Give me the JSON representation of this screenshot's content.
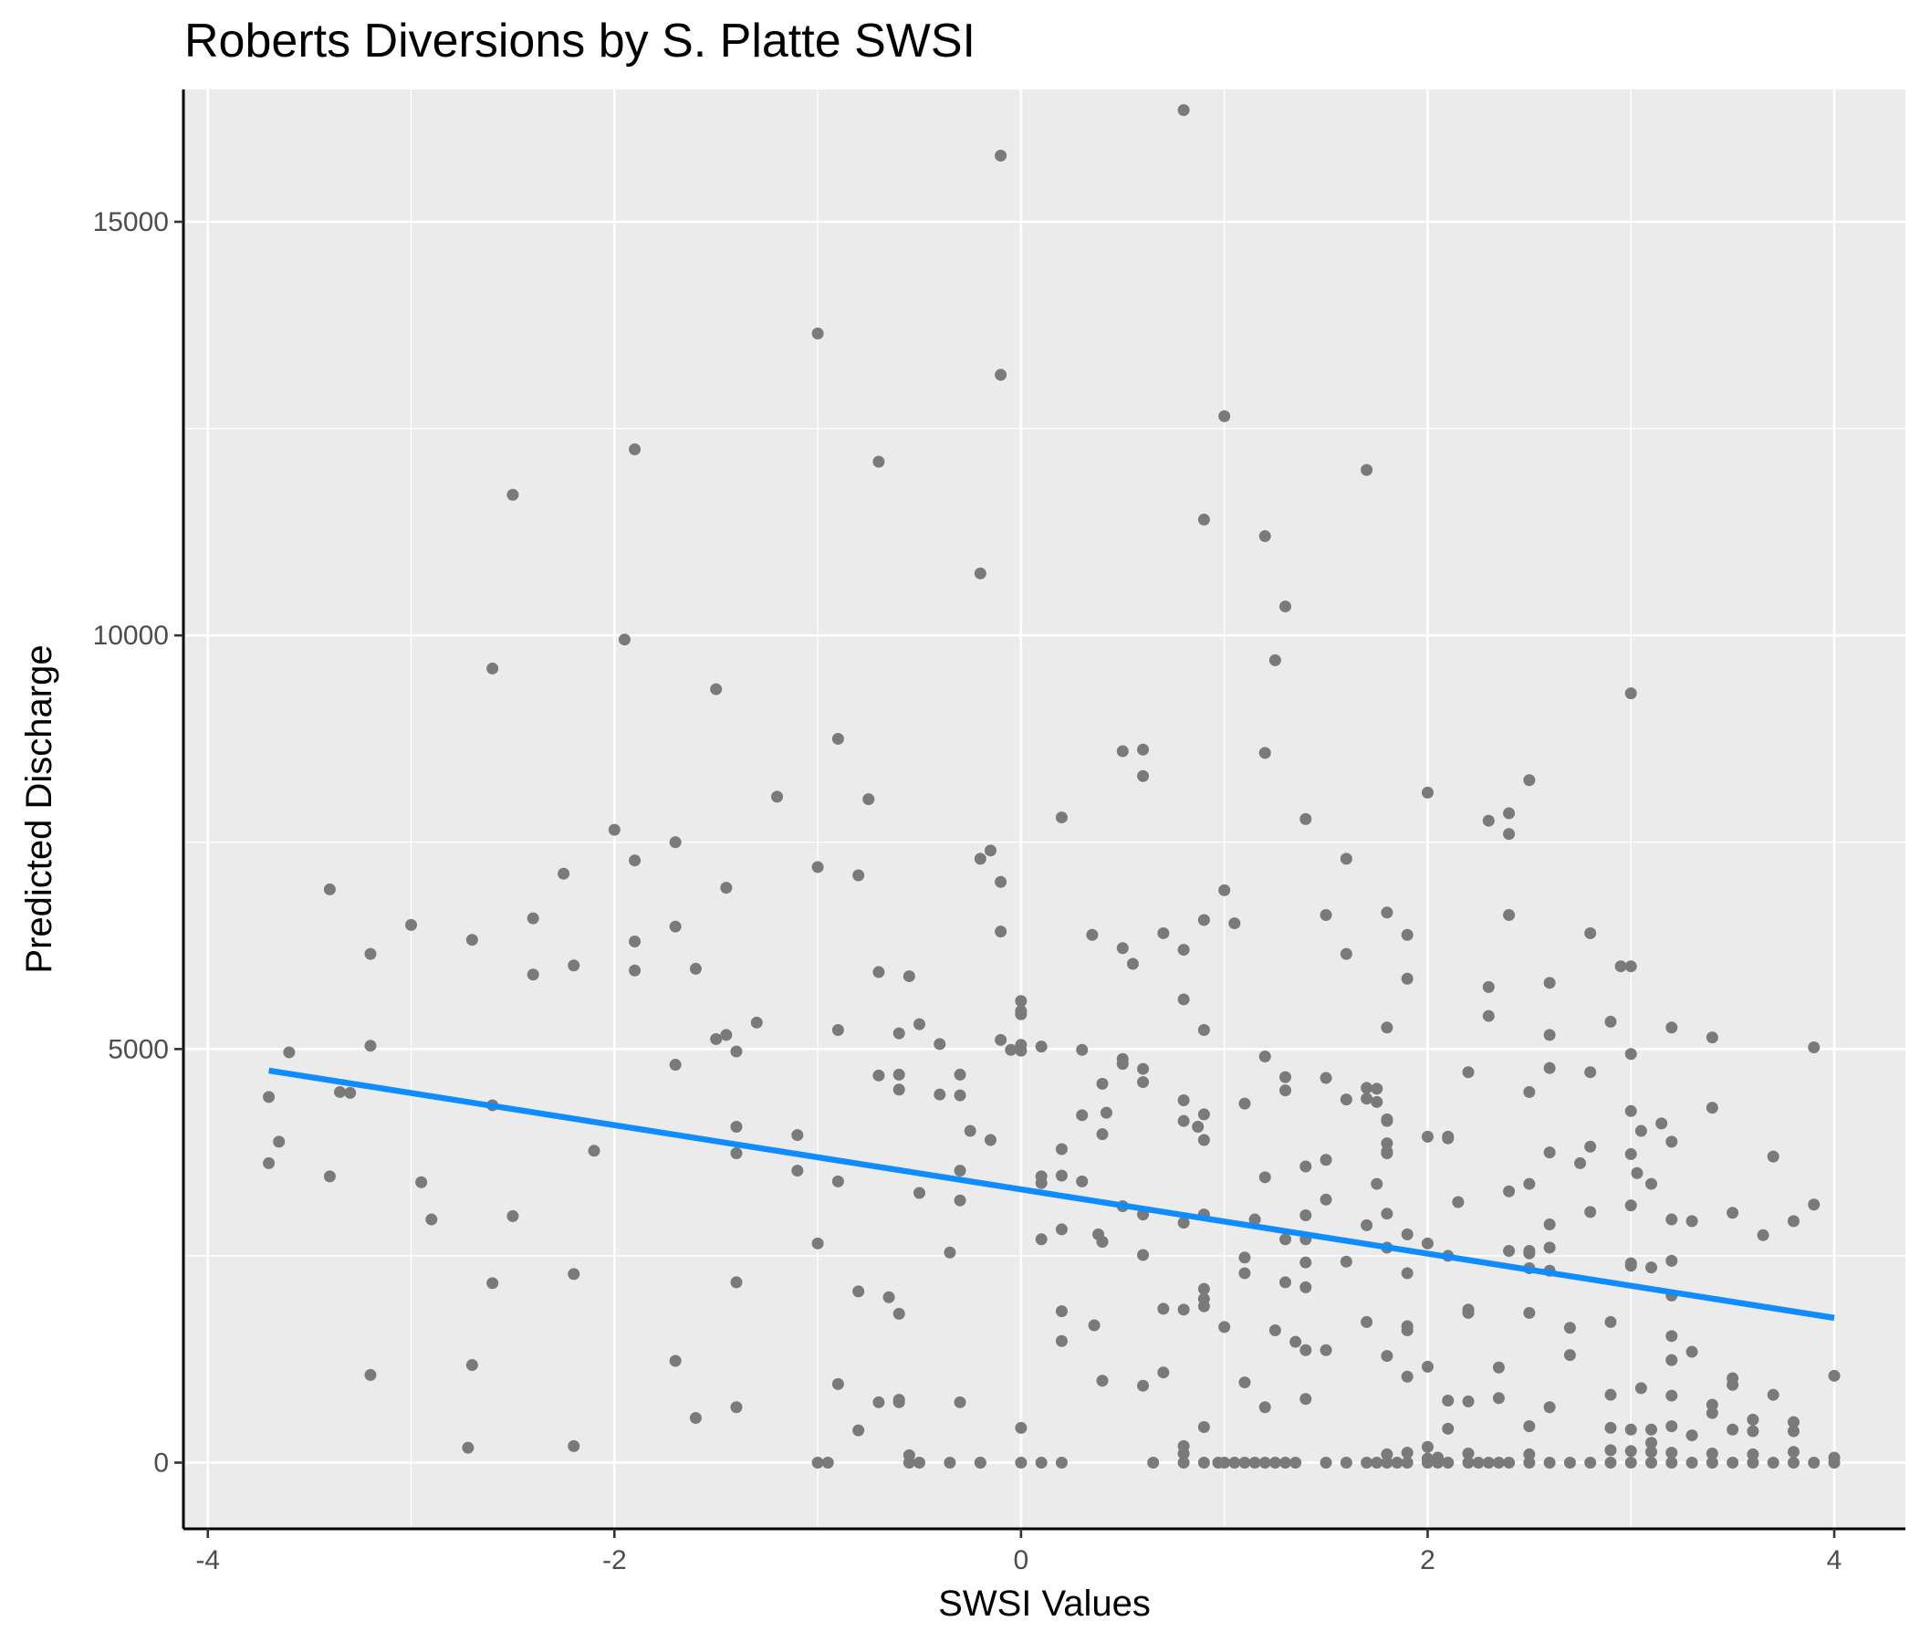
{
  "chart_data": {
    "type": "scatter",
    "title": "Roberts Diversions by S. Platte SWSI",
    "xlabel": "SWSI Values",
    "ylabel": "Predicted Discharge",
    "xlim": [
      -4.12,
      4.35
    ],
    "ylim": [
      -800,
      16600
    ],
    "x_ticks": [
      -4,
      -2,
      0,
      2,
      4
    ],
    "x_tick_labels": [
      "-4",
      "-2",
      "0",
      "2",
      "4"
    ],
    "y_ticks": [
      0,
      5000,
      10000,
      15000
    ],
    "y_tick_labels": [
      "0",
      "5000",
      "10000",
      "15000"
    ],
    "grid": true,
    "background": "#ebebeb",
    "grid_color": "#ffffff",
    "point_color": "#7a7a7a",
    "trend_color": "#0f8cff",
    "trend_line": {
      "x": [
        -3.7,
        4.0
      ],
      "y": [
        4740,
        1750
      ]
    },
    "points": [
      [
        0.8,
        16350
      ],
      [
        -0.1,
        15800
      ],
      [
        -1.0,
        13650
      ],
      [
        -0.1,
        13150
      ],
      [
        1.0,
        12650
      ],
      [
        -1.9,
        12250
      ],
      [
        -0.7,
        12100
      ],
      [
        1.7,
        12000
      ],
      [
        -2.5,
        11700
      ],
      [
        0.9,
        11400
      ],
      [
        1.2,
        11200
      ],
      [
        -0.2,
        10750
      ],
      [
        1.3,
        10350
      ],
      [
        -1.95,
        9950
      ],
      [
        1.25,
        9700
      ],
      [
        -2.6,
        9600
      ],
      [
        -1.5,
        9350
      ],
      [
        3.0,
        9300
      ],
      [
        -0.9,
        8750
      ],
      [
        0.5,
        8600
      ],
      [
        0.6,
        8620
      ],
      [
        1.2,
        8580
      ],
      [
        0.6,
        8300
      ],
      [
        2.5,
        8250
      ],
      [
        2.0,
        8100
      ],
      [
        -1.2,
        8050
      ],
      [
        -0.75,
        8020
      ],
      [
        2.4,
        7850
      ],
      [
        0.2,
        7800
      ],
      [
        1.4,
        7780
      ],
      [
        2.3,
        7760
      ],
      [
        -2.0,
        7650
      ],
      [
        2.4,
        7600
      ],
      [
        -1.7,
        7500
      ],
      [
        -0.15,
        7400
      ],
      [
        -0.2,
        7300
      ],
      [
        -1.9,
        7280
      ],
      [
        1.6,
        7300
      ],
      [
        -2.25,
        7120
      ],
      [
        -1.0,
        7200
      ],
      [
        -0.8,
        7100
      ],
      [
        -0.1,
        7020
      ],
      [
        -3.4,
        6930
      ],
      [
        -1.45,
        6950
      ],
      [
        1.0,
        6920
      ],
      [
        1.8,
        6650
      ],
      [
        1.5,
        6620
      ],
      [
        2.4,
        6620
      ],
      [
        -2.4,
        6580
      ],
      [
        0.9,
        6560
      ],
      [
        1.05,
        6520
      ],
      [
        -3.0,
        6500
      ],
      [
        -1.7,
        6480
      ],
      [
        -0.1,
        6420
      ],
      [
        0.7,
        6400
      ],
      [
        0.35,
        6380
      ],
      [
        1.9,
        6380
      ],
      [
        2.8,
        6400
      ],
      [
        -2.7,
        6320
      ],
      [
        -1.9,
        6300
      ],
      [
        0.5,
        6220
      ],
      [
        0.8,
        6200
      ],
      [
        1.6,
        6150
      ],
      [
        -3.2,
        6150
      ],
      [
        0.55,
        6030
      ],
      [
        -2.2,
        6010
      ],
      [
        -1.6,
        5970
      ],
      [
        -1.9,
        5950
      ],
      [
        -0.7,
        5930
      ],
      [
        -2.4,
        5900
      ],
      [
        -0.55,
        5880
      ],
      [
        1.9,
        5850
      ],
      [
        2.6,
        5800
      ],
      [
        2.3,
        5750
      ],
      [
        2.95,
        6000
      ],
      [
        3.0,
        6000
      ],
      [
        0.8,
        5600
      ],
      [
        0.0,
        5580
      ],
      [
        0.0,
        5460
      ],
      [
        0.0,
        5420
      ],
      [
        2.3,
        5400
      ],
      [
        2.9,
        5330
      ],
      [
        -1.3,
        5320
      ],
      [
        -0.5,
        5300
      ],
      [
        1.8,
        5260
      ],
      [
        3.2,
        5260
      ],
      [
        -0.9,
        5230
      ],
      [
        0.9,
        5230
      ],
      [
        -0.6,
        5190
      ],
      [
        2.6,
        5170
      ],
      [
        -1.45,
        5170
      ],
      [
        -1.5,
        5120
      ],
      [
        3.4,
        5140
      ],
      [
        -0.1,
        5110
      ],
      [
        -0.4,
        5060
      ],
      [
        -3.2,
        5040
      ],
      [
        0.1,
        5030
      ],
      [
        3.9,
        5020
      ],
      [
        -0.05,
        4990
      ],
      [
        0.0,
        4980
      ],
      [
        0.0,
        5050
      ],
      [
        0.3,
        4990
      ],
      [
        -1.4,
        4970
      ],
      [
        -3.6,
        4960
      ],
      [
        3.0,
        4940
      ],
      [
        1.2,
        4910
      ],
      [
        0.5,
        4880
      ],
      [
        0.5,
        4820
      ],
      [
        -1.7,
        4810
      ],
      [
        2.6,
        4770
      ],
      [
        0.6,
        4760
      ],
      [
        2.2,
        4720
      ],
      [
        2.8,
        4720
      ],
      [
        -0.7,
        4680
      ],
      [
        -0.6,
        4690
      ],
      [
        1.3,
        4660
      ],
      [
        1.5,
        4650
      ],
      [
        -0.3,
        4690
      ],
      [
        0.4,
        4580
      ],
      [
        0.6,
        4600
      ],
      [
        1.7,
        4530
      ],
      [
        1.75,
        4520
      ],
      [
        1.3,
        4500
      ],
      [
        -0.6,
        4510
      ],
      [
        2.5,
        4480
      ],
      [
        -3.35,
        4480
      ],
      [
        -3.3,
        4470
      ],
      [
        -0.4,
        4450
      ],
      [
        -0.3,
        4440
      ],
      [
        -3.7,
        4420
      ],
      [
        1.6,
        4390
      ],
      [
        1.7,
        4400
      ],
      [
        1.75,
        4360
      ],
      [
        0.8,
        4380
      ],
      [
        1.1,
        4340
      ],
      [
        -2.6,
        4320
      ],
      [
        3.4,
        4290
      ],
      [
        3.0,
        4250
      ],
      [
        0.42,
        4230
      ],
      [
        0.3,
        4200
      ],
      [
        0.9,
        4210
      ],
      [
        1.8,
        4150
      ],
      [
        1.8,
        4130
      ],
      [
        0.8,
        4130
      ],
      [
        3.15,
        4100
      ],
      [
        -1.4,
        4060
      ],
      [
        0.87,
        4060
      ],
      [
        -0.25,
        4010
      ],
      [
        3.05,
        4010
      ],
      [
        0.4,
        3970
      ],
      [
        -1.1,
        3960
      ],
      [
        2.0,
        3940
      ],
      [
        2.1,
        3940
      ],
      [
        2.1,
        3920
      ],
      [
        -0.15,
        3900
      ],
      [
        0.9,
        3900
      ],
      [
        3.2,
        3880
      ],
      [
        -3.65,
        3880
      ],
      [
        1.8,
        3860
      ],
      [
        2.8,
        3820
      ],
      [
        0.2,
        3790
      ],
      [
        -2.1,
        3770
      ],
      [
        1.8,
        3760
      ],
      [
        1.8,
        3740
      ],
      [
        2.6,
        3750
      ],
      [
        -1.4,
        3740
      ],
      [
        3.0,
        3730
      ],
      [
        3.7,
        3700
      ],
      [
        1.5,
        3660
      ],
      [
        2.75,
        3620
      ],
      [
        -3.7,
        3620
      ],
      [
        1.4,
        3580
      ],
      [
        -1.1,
        3530
      ],
      [
        -0.3,
        3530
      ],
      [
        3.03,
        3500
      ],
      [
        0.1,
        3460
      ],
      [
        0.2,
        3470
      ],
      [
        1.2,
        3450
      ],
      [
        -3.4,
        3460
      ],
      [
        0.1,
        3380
      ],
      [
        -0.9,
        3400
      ],
      [
        -2.95,
        3390
      ],
      [
        0.3,
        3400
      ],
      [
        3.1,
        3370
      ],
      [
        1.75,
        3370
      ],
      [
        2.5,
        3370
      ],
      [
        2.4,
        3280
      ],
      [
        -0.5,
        3260
      ],
      [
        1.5,
        3180
      ],
      [
        -0.3,
        3170
      ],
      [
        2.15,
        3150
      ],
      [
        3.9,
        3120
      ],
      [
        3.0,
        3110
      ],
      [
        0.5,
        3100
      ],
      [
        2.8,
        3030
      ],
      [
        1.8,
        3010
      ],
      [
        0.6,
        3000
      ],
      [
        3.5,
        3020
      ],
      [
        0.9,
        3000
      ],
      [
        1.4,
        2990
      ],
      [
        -2.5,
        2980
      ],
      [
        -2.9,
        2940
      ],
      [
        1.15,
        2940
      ],
      [
        3.2,
        2940
      ],
      [
        3.3,
        2920
      ],
      [
        3.8,
        2920
      ],
      [
        0.8,
        2900
      ],
      [
        2.6,
        2880
      ],
      [
        1.7,
        2870
      ],
      [
        0.2,
        2820
      ],
      [
        3.65,
        2750
      ],
      [
        0.38,
        2760
      ],
      [
        1.9,
        2760
      ],
      [
        1.3,
        2700
      ],
      [
        1.4,
        2700
      ],
      [
        0.1,
        2700
      ],
      [
        0.4,
        2670
      ],
      [
        -1.0,
        2650
      ],
      [
        2.0,
        2650
      ],
      [
        1.8,
        2600
      ],
      [
        2.6,
        2600
      ],
      [
        2.4,
        2560
      ],
      [
        2.5,
        2560
      ],
      [
        2.5,
        2530
      ],
      [
        -0.35,
        2540
      ],
      [
        0.6,
        2510
      ],
      [
        2.1,
        2500
      ],
      [
        1.1,
        2480
      ],
      [
        3.2,
        2440
      ],
      [
        1.6,
        2430
      ],
      [
        1.4,
        2420
      ],
      [
        3.0,
        2410
      ],
      [
        3.0,
        2380
      ],
      [
        3.1,
        2360
      ],
      [
        2.5,
        2350
      ],
      [
        2.6,
        2320
      ],
      [
        1.1,
        2290
      ],
      [
        1.9,
        2290
      ],
      [
        -2.2,
        2280
      ],
      [
        1.3,
        2180
      ],
      [
        1.4,
        2120
      ],
      [
        -2.6,
        2170
      ],
      [
        -1.4,
        2180
      ],
      [
        0.9,
        2100
      ],
      [
        -0.8,
        2070
      ],
      [
        3.2,
        2020
      ],
      [
        -0.65,
        2000
      ],
      [
        0.9,
        1980
      ],
      [
        0.9,
        1890
      ],
      [
        0.7,
        1860
      ],
      [
        0.8,
        1850
      ],
      [
        2.2,
        1850
      ],
      [
        0.2,
        1830
      ],
      [
        2.2,
        1810
      ],
      [
        2.5,
        1810
      ],
      [
        -0.6,
        1800
      ],
      [
        1.7,
        1700
      ],
      [
        1.9,
        1650
      ],
      [
        0.36,
        1660
      ],
      [
        2.7,
        1630
      ],
      [
        1.0,
        1640
      ],
      [
        1.25,
        1600
      ],
      [
        2.9,
        1700
      ],
      [
        1.9,
        1600
      ],
      [
        3.2,
        1530
      ],
      [
        0.2,
        1470
      ],
      [
        1.35,
        1460
      ],
      [
        1.4,
        1360
      ],
      [
        1.5,
        1360
      ],
      [
        3.3,
        1340
      ],
      [
        2.7,
        1300
      ],
      [
        1.8,
        1290
      ],
      [
        3.2,
        1240
      ],
      [
        -1.7,
        1230
      ],
      [
        -2.7,
        1180
      ],
      [
        2.0,
        1160
      ],
      [
        2.35,
        1150
      ],
      [
        0.7,
        1090
      ],
      [
        -3.2,
        1060
      ],
      [
        1.9,
        1040
      ],
      [
        3.5,
        1020
      ],
      [
        4.0,
        1050
      ],
      [
        0.4,
        990
      ],
      [
        1.1,
        970
      ],
      [
        -0.9,
        950
      ],
      [
        0.6,
        930
      ],
      [
        3.5,
        940
      ],
      [
        3.05,
        900
      ],
      [
        2.9,
        820
      ],
      [
        3.2,
        810
      ],
      [
        3.7,
        820
      ],
      [
        1.4,
        770
      ],
      [
        2.35,
        780
      ],
      [
        2.1,
        750
      ],
      [
        2.2,
        740
      ],
      [
        -0.6,
        760
      ],
      [
        -0.6,
        730
      ],
      [
        -0.7,
        730
      ],
      [
        -0.3,
        730
      ],
      [
        3.4,
        700
      ],
      [
        -1.4,
        670
      ],
      [
        1.2,
        670
      ],
      [
        2.6,
        670
      ],
      [
        3.4,
        600
      ],
      [
        -1.6,
        540
      ],
      [
        3.6,
        520
      ],
      [
        3.8,
        490
      ],
      [
        2.5,
        440
      ],
      [
        0.9,
        430
      ],
      [
        0.0,
        420
      ],
      [
        3.2,
        440
      ],
      [
        -0.8,
        390
      ],
      [
        2.1,
        410
      ],
      [
        2.9,
        420
      ],
      [
        3.0,
        400
      ],
      [
        3.1,
        400
      ],
      [
        3.5,
        400
      ],
      [
        3.6,
        380
      ],
      [
        3.8,
        380
      ],
      [
        3.3,
        330
      ],
      [
        3.1,
        240
      ],
      [
        2.0,
        190
      ],
      [
        0.8,
        200
      ],
      [
        -2.72,
        180
      ],
      [
        -2.2,
        200
      ],
      [
        2.9,
        150
      ],
      [
        3.0,
        140
      ],
      [
        3.1,
        130
      ],
      [
        0.8,
        110
      ],
      [
        1.8,
        100
      ],
      [
        1.9,
        120
      ],
      [
        2.2,
        110
      ],
      [
        2.5,
        100
      ],
      [
        3.2,
        120
      ],
      [
        3.4,
        110
      ],
      [
        3.6,
        100
      ],
      [
        3.8,
        130
      ],
      [
        -0.55,
        90
      ],
      [
        2.0,
        50
      ],
      [
        2.05,
        60
      ],
      [
        4.0,
        60
      ],
      [
        -1.0,
        0
      ],
      [
        -0.95,
        0
      ],
      [
        -0.55,
        0
      ],
      [
        -0.5,
        0
      ],
      [
        -0.35,
        0
      ],
      [
        -0.2,
        0
      ],
      [
        -0.2,
        0
      ],
      [
        0.0,
        0
      ],
      [
        0.1,
        0
      ],
      [
        0.2,
        0
      ],
      [
        0.65,
        0
      ],
      [
        0.8,
        0
      ],
      [
        0.9,
        0
      ],
      [
        0.97,
        0
      ],
      [
        1.0,
        0
      ],
      [
        1.05,
        0
      ],
      [
        1.1,
        0
      ],
      [
        1.15,
        0
      ],
      [
        1.2,
        0
      ],
      [
        1.25,
        0
      ],
      [
        1.3,
        0
      ],
      [
        1.35,
        0
      ],
      [
        1.5,
        0
      ],
      [
        1.6,
        0
      ],
      [
        1.7,
        0
      ],
      [
        1.75,
        0
      ],
      [
        1.8,
        0
      ],
      [
        1.85,
        0
      ],
      [
        1.9,
        0
      ],
      [
        2.0,
        0
      ],
      [
        2.05,
        0
      ],
      [
        2.1,
        0
      ],
      [
        2.2,
        0
      ],
      [
        2.25,
        0
      ],
      [
        2.3,
        0
      ],
      [
        2.35,
        0
      ],
      [
        2.4,
        0
      ],
      [
        2.5,
        0
      ],
      [
        2.6,
        0
      ],
      [
        2.7,
        0
      ],
      [
        2.8,
        0
      ],
      [
        2.9,
        0
      ],
      [
        3.0,
        0
      ],
      [
        3.1,
        0
      ],
      [
        3.2,
        0
      ],
      [
        3.3,
        0
      ],
      [
        3.4,
        0
      ],
      [
        3.5,
        0
      ],
      [
        3.6,
        0
      ],
      [
        3.7,
        0
      ],
      [
        3.8,
        0
      ],
      [
        3.9,
        0
      ],
      [
        4.0,
        0
      ]
    ]
  }
}
